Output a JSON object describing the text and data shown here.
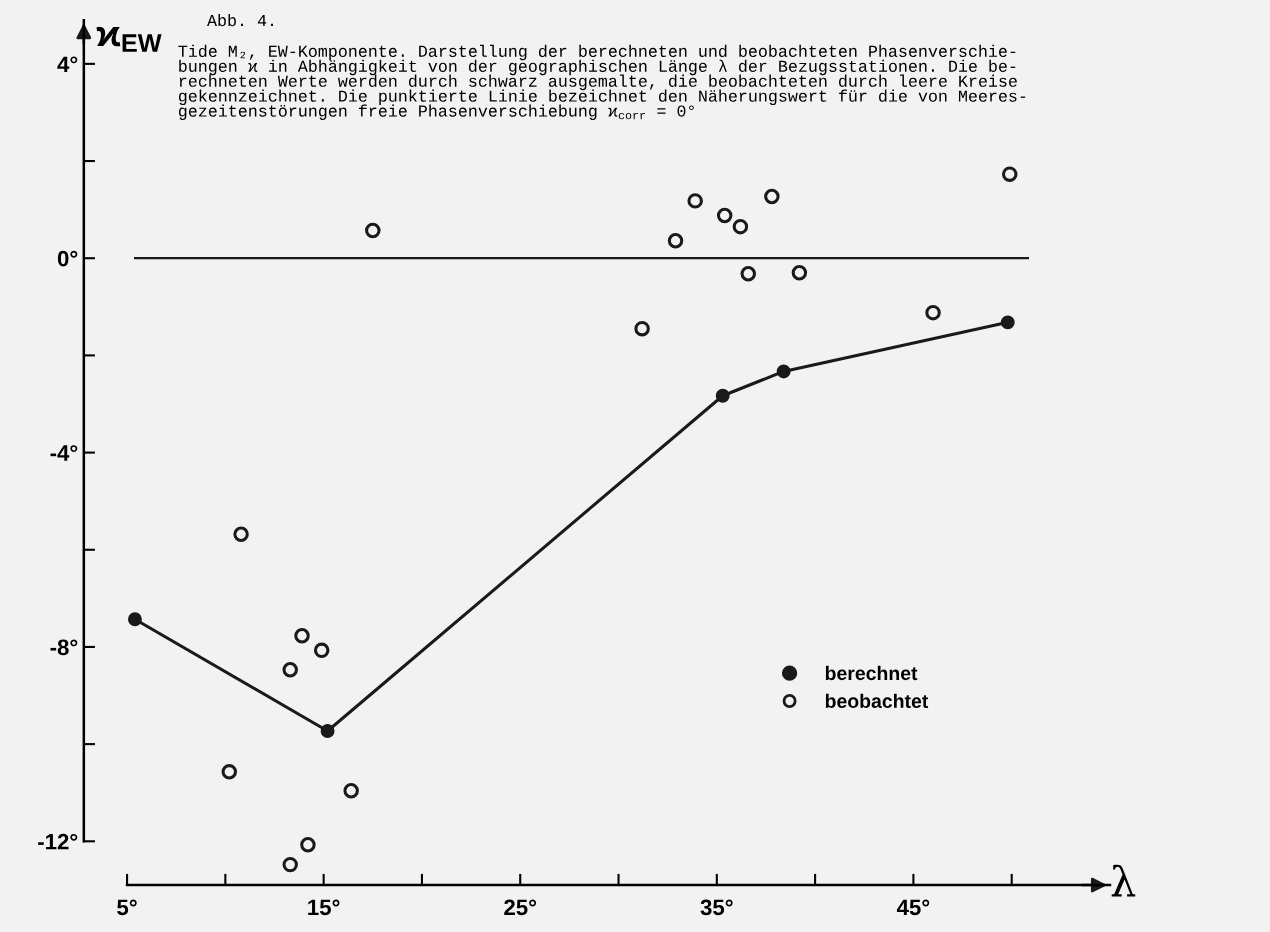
{
  "chart_data": {
    "type": "line",
    "title": "Abb. 4.",
    "subtitle": "Tide M₂, EW-Komponente. Darstellung der berechneten und beobachteten Phasenverschie-\nbungen ϰ in Abhängigkeit von der geographischen Länge λ der Bezugsstationen. Die be-\nrechneten Werte werden durch schwarz ausgemalte, die beobachteten durch leere Kreise\ngekennzeichnet. Die punktierte Linie bezeichnet den Näherungswert für die von Meeres-\ngezeitenstörungen freie Phasenverschiebung ϰ$_{corr}$ = 0°",
    "xlabel": "λ",
    "ylabel": "ϰ$_{EW}$",
    "xlim": [
      2.8,
      55
    ],
    "ylim": [
      -12.9,
      4.9
    ],
    "xticks": [
      {
        "value": 5,
        "label": "5°"
      },
      {
        "value": 10,
        "label": null
      },
      {
        "value": 15,
        "label": "15°"
      },
      {
        "value": 20,
        "label": null
      },
      {
        "value": 25,
        "label": "25°"
      },
      {
        "value": 30,
        "label": null
      },
      {
        "value": 35,
        "label": "35°"
      },
      {
        "value": 40,
        "label": null
      },
      {
        "value": 45,
        "label": "45°"
      },
      {
        "value": 50,
        "label": null
      }
    ],
    "yticks": [
      {
        "value": -12,
        "label": "-12°"
      },
      {
        "value": -10,
        "label": null
      },
      {
        "value": -8,
        "label": "-8°"
      },
      {
        "value": -6,
        "label": null
      },
      {
        "value": -4,
        "label": "-4°"
      },
      {
        "value": -2,
        "label": null
      },
      {
        "value": 0,
        "label": "0°"
      },
      {
        "value": 2,
        "label": null
      },
      {
        "value": 4,
        "label": "4°"
      }
    ],
    "ref_lines": [
      {
        "axis": "y",
        "value": 0,
        "color": "#1a1a1a",
        "line_style": "solid"
      }
    ],
    "series": [
      {
        "name": "berechnet",
        "color": "#1a1a1a",
        "marker": "circle",
        "x": [
          5.4,
          15.2,
          35.3,
          38.4,
          49.8
        ],
        "values": [
          -7.43,
          -9.73,
          -2.83,
          -2.33,
          -1.32
        ]
      },
      {
        "name": "beobachtet",
        "type": "scatter",
        "color": "#1a1a1a",
        "marker": "circle",
        "x": [
          10.8,
          13.9,
          14.9,
          13.3,
          10.2,
          16.4,
          14.2,
          13.3,
          17.5,
          31.2,
          32.9,
          33.9,
          35.4,
          36.2,
          37.8,
          36.6,
          39.2,
          46.0,
          49.9
        ],
        "values": [
          -5.68,
          -7.77,
          -8.07,
          -8.47,
          -10.57,
          -10.96,
          -12.07,
          -12.48,
          0.57,
          -1.45,
          0.36,
          1.18,
          0.88,
          0.65,
          1.27,
          -0.32,
          -0.3,
          -1.12,
          1.73
        ]
      }
    ],
    "legend": "bottom right",
    "grid": false
  }
}
